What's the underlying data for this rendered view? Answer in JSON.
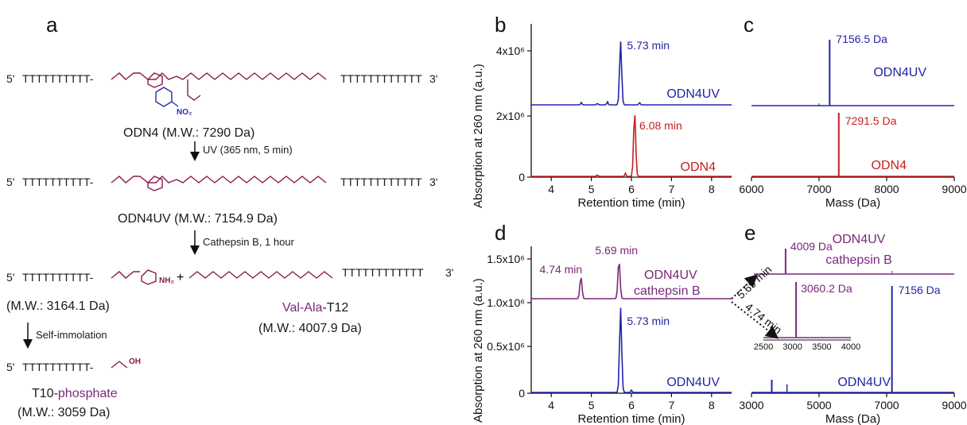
{
  "colors": {
    "blue": "#2424a8",
    "red": "#c81e1e",
    "purple": "#7a287a",
    "chem": "#8b1a4f",
    "nitro": "#2b2bb0"
  },
  "scheme": {
    "panel": "a",
    "seq5": "5'",
    "seq3": "3'",
    "t10": "TTTTTTTTTT-",
    "t12": "TTTTTTTTTTTT",
    "odn4_label": "ODN4 (M.W.: 7290 Da)",
    "step_uv": "UV (365 nm, 5 min)",
    "odn4uv_label": "ODN4UV (M.W.: 7154.9 Da)",
    "step_cathepsin": "Cathepsin B, 1 hour",
    "frag1_mw": "(M.W.: 3164.1 Da)",
    "frag2_name_a": "Val-Ala",
    "frag2_name_b": "-T12",
    "frag2_mw": "(M.W.: 4007.9 Da)",
    "step_self": "Self-immolation",
    "t10p_name_a": "T10-",
    "t10p_name_b": "phosphate",
    "t10p_mw": "(M.W.: 3059 Da)",
    "plus": "+"
  },
  "chart_data": [
    {
      "panel": "b",
      "type": "line",
      "xlabel": "Retention time (min)",
      "ylabel": "Absorption at 260 nm (a.u.)",
      "xlim": [
        3.5,
        8.5
      ],
      "xticks": [
        "4",
        "5",
        "6",
        "7",
        "8"
      ],
      "yticks": [
        "0",
        "2x10⁶",
        "4x10⁶"
      ],
      "series": [
        {
          "name": "ODN4UV",
          "baseline": 2.2,
          "peaks": [
            {
              "x": 5.73,
              "label": "5.73 min"
            }
          ]
        },
        {
          "name": "ODN4",
          "baseline": 0,
          "peaks": [
            {
              "x": 6.08,
              "label": "6.08 min"
            }
          ]
        }
      ]
    },
    {
      "panel": "c",
      "type": "line",
      "xlabel": "Mass (Da)",
      "xlim": [
        6000,
        9000
      ],
      "xticks": [
        "6000",
        "7000",
        "8000",
        "9000"
      ],
      "series": [
        {
          "name": "ODN4UV",
          "peaks": [
            {
              "x": 7156.5,
              "label": "7156.5 Da"
            }
          ]
        },
        {
          "name": "ODN4",
          "peaks": [
            {
              "x": 7291.5,
              "label": "7291.5 Da"
            }
          ]
        }
      ]
    },
    {
      "panel": "d",
      "type": "line",
      "xlabel": "Retention time (min)",
      "ylabel": "Absorption at 260 nm (a.u.)",
      "xlim": [
        3.5,
        8.5
      ],
      "xticks": [
        "4",
        "5",
        "6",
        "7",
        "8"
      ],
      "yticks": [
        "0",
        "0.5x10⁶",
        "1.0x10⁶",
        "1.5x10⁶"
      ],
      "series": [
        {
          "name": "ODN4UV cathepsin B",
          "name_lines": [
            "ODN4UV",
            "cathepsin B"
          ],
          "baseline": 1.05,
          "peaks": [
            {
              "x": 4.74,
              "label": "4.74 min"
            },
            {
              "x": 5.69,
              "label": "5.69 min"
            }
          ]
        },
        {
          "name": "ODN4UV",
          "baseline": 0,
          "peaks": [
            {
              "x": 5.73,
              "label": "5.73 min"
            }
          ]
        }
      ]
    },
    {
      "panel": "e",
      "type": "line",
      "xlabel": "Mass (Da)",
      "xlim": [
        3000,
        9000
      ],
      "xticks": [
        "3000",
        "5000",
        "7000",
        "9000"
      ],
      "series": [
        {
          "name": "ODN4UV cathepsin B",
          "name_lines": [
            "ODN4UV",
            "cathepsin B"
          ],
          "peaks": [
            {
              "x": 4009,
              "label": "4009 Da"
            }
          ]
        },
        {
          "name": "ODN4UV",
          "peaks": [
            {
              "x": 7156,
              "label": "7156 Da"
            }
          ]
        }
      ],
      "inset": {
        "xlim": [
          2500,
          4000
        ],
        "xticks": [
          "2500",
          "3000",
          "3500",
          "4000"
        ],
        "peaks": [
          {
            "x": 3060.2,
            "label": "3060.2 Da"
          }
        ]
      },
      "arrow_labels": [
        "5.69 min",
        "4.74 min"
      ]
    }
  ]
}
